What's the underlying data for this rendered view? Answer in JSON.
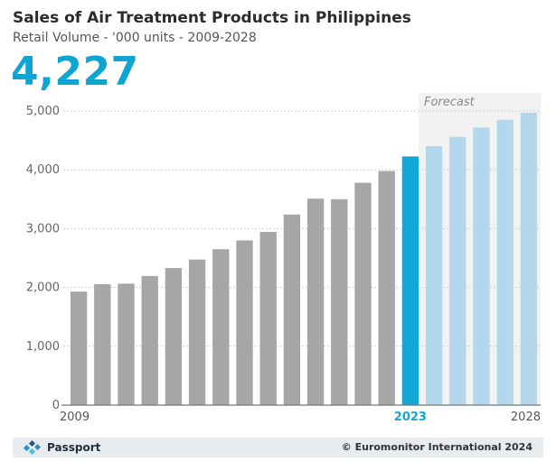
{
  "header": {
    "title": "Sales of Air Treatment Products in Philippines",
    "subtitle": "Retail Volume - '000 units - 2009-2028",
    "headline_value": "4,227"
  },
  "chart_data": {
    "type": "bar",
    "title": "Sales of Air Treatment Products in Philippines",
    "subtitle": "Retail Volume - '000 units - 2009-2028",
    "xlabel": "",
    "ylabel": "",
    "ylim": [
      0,
      5000
    ],
    "yticks": [
      0,
      1000,
      2000,
      3000,
      4000,
      5000
    ],
    "ytick_labels": [
      "0",
      "1,000",
      "2,000",
      "3,000",
      "4,000",
      "5,000"
    ],
    "x_labels_shown": [
      "2009",
      "2023",
      "2028"
    ],
    "categories": [
      "2009",
      "2010",
      "2011",
      "2012",
      "2013",
      "2014",
      "2015",
      "2016",
      "2017",
      "2018",
      "2019",
      "2020",
      "2021",
      "2022",
      "2023",
      "2024",
      "2025",
      "2026",
      "2027",
      "2028"
    ],
    "values": [
      1930,
      2055,
      2065,
      2195,
      2330,
      2475,
      2650,
      2800,
      2945,
      3240,
      3510,
      3500,
      3780,
      3980,
      4227,
      4400,
      4560,
      4720,
      4850,
      4970
    ],
    "highlight_category": "2023",
    "forecast_start": "2024",
    "forecast_label": "Forecast",
    "grid": true,
    "colors": {
      "historical": "#a5a6a8",
      "current": "#10a7d6",
      "forecast": "#b3d7ed",
      "forecast_bg": "#f2f2f2",
      "highlight_text": "#10a7d6"
    }
  },
  "footer": {
    "brand": "Passport",
    "brand_icon": "passport-logo-icon",
    "copyright": "© Euromonitor International 2024"
  }
}
